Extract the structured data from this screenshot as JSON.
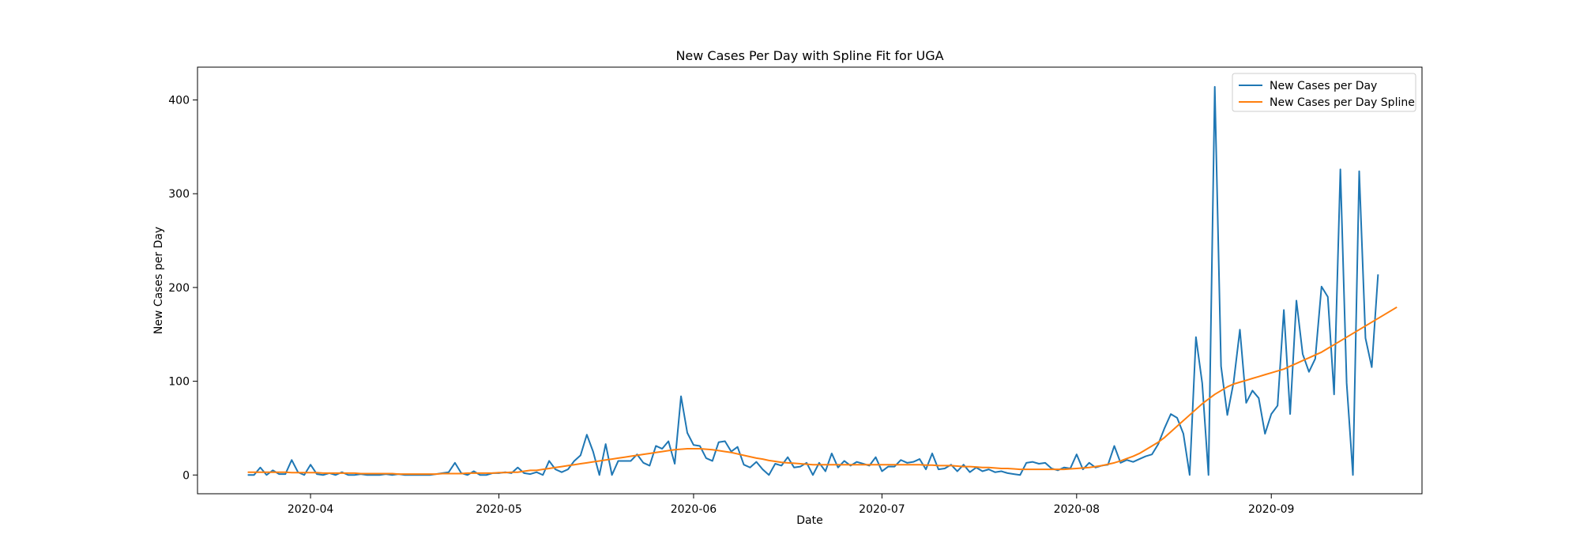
{
  "chart_data": {
    "type": "line",
    "title": "New Cases Per Day with Spline Fit for UGA",
    "xlabel": "Date",
    "ylabel": "New Cases per Day",
    "xlim": [
      "2020-03-14",
      "2020-09-25"
    ],
    "ylim": [
      -20,
      435
    ],
    "x_ticks": [
      "2020-04",
      "2020-05",
      "2020-06",
      "2020-07",
      "2020-08",
      "2020-09"
    ],
    "x_tick_dates": [
      "2020-04-01",
      "2020-05-01",
      "2020-06-01",
      "2020-07-01",
      "2020-08-01",
      "2020-09-01"
    ],
    "y_ticks": [
      0,
      100,
      200,
      300,
      400
    ],
    "grid": false,
    "legend_position": "top-right",
    "x_start": "2020-03-22",
    "x_step_days": 1,
    "series": [
      {
        "name": "New Cases per Day",
        "color": "#1f77b4",
        "values": [
          0,
          0,
          8,
          0,
          5,
          1,
          1,
          16,
          3,
          0,
          11,
          1,
          0,
          2,
          0,
          3,
          0,
          0,
          1,
          0,
          0,
          0,
          1,
          0,
          1,
          0,
          0,
          0,
          0,
          0,
          1,
          2,
          3,
          13,
          2,
          0,
          4,
          0,
          0,
          2,
          2,
          3,
          2,
          8,
          2,
          1,
          3,
          0,
          15,
          6,
          3,
          6,
          15,
          21,
          43,
          25,
          0,
          33,
          0,
          15,
          15,
          15,
          22,
          13,
          10,
          31,
          28,
          36,
          12,
          84,
          45,
          32,
          31,
          18,
          15,
          35,
          36,
          25,
          30,
          11,
          8,
          14,
          6,
          0,
          12,
          10,
          19,
          8,
          9,
          13,
          0,
          13,
          4,
          23,
          8,
          15,
          10,
          14,
          12,
          10,
          19,
          4,
          9,
          9,
          16,
          13,
          14,
          17,
          6,
          23,
          6,
          7,
          11,
          4,
          11,
          3,
          8,
          4,
          6,
          3,
          4,
          2,
          1,
          0,
          13,
          14,
          12,
          13,
          7,
          5,
          8,
          7,
          22,
          6,
          13,
          8,
          10,
          11,
          31,
          13,
          16,
          14,
          17,
          20,
          22,
          33,
          50,
          65,
          61,
          44,
          0,
          147,
          98,
          0,
          414,
          116,
          64,
          99,
          155,
          77,
          90,
          82,
          44,
          65,
          74,
          176,
          65,
          186,
          129,
          110,
          124,
          201,
          190,
          86,
          326,
          98,
          0,
          324,
          146,
          115,
          214
        ]
      },
      {
        "name": "New Cases per Day Spline",
        "color": "#ff7f0e",
        "values": [
          3,
          3,
          3,
          3,
          3,
          3,
          3,
          2.5,
          2.5,
          2.5,
          2.5,
          2.5,
          2,
          2,
          2,
          2,
          2,
          2,
          1.5,
          1.5,
          1.5,
          1.5,
          1.5,
          1.5,
          1,
          1,
          1,
          1,
          1,
          1,
          1,
          1.5,
          1.5,
          1.5,
          1.5,
          2,
          2,
          2,
          2,
          2,
          2.5,
          2.5,
          3,
          3,
          4,
          5,
          5,
          6,
          7,
          8,
          9,
          10,
          11,
          12,
          13,
          14,
          15,
          16,
          17,
          18,
          19,
          20,
          21,
          22,
          23,
          24,
          25,
          26,
          27,
          27.5,
          28,
          28,
          28,
          27.5,
          27,
          26,
          25,
          24,
          22.5,
          21,
          19.5,
          18,
          17,
          15.5,
          14.5,
          13.5,
          13,
          12.5,
          12,
          11.5,
          11,
          11,
          11,
          11,
          11,
          11,
          11,
          11,
          11,
          11,
          11,
          11,
          11,
          11,
          11,
          11,
          11,
          11,
          10.5,
          10.5,
          10,
          10,
          10,
          9.5,
          9,
          9,
          8.5,
          8,
          8,
          7.5,
          7,
          7,
          6.5,
          6,
          6,
          6,
          6,
          6,
          6,
          6,
          6,
          6.5,
          7,
          7.5,
          8,
          9,
          10,
          11.5,
          13,
          15,
          17.5,
          20,
          23,
          27,
          31,
          35,
          40,
          46,
          52,
          58,
          64,
          70,
          76,
          81,
          86,
          90,
          94,
          97,
          99,
          101,
          103,
          105,
          107,
          109,
          111,
          113,
          116,
          119,
          122,
          125,
          128,
          131,
          135,
          139,
          143,
          147,
          151,
          155,
          159,
          163,
          167,
          171,
          175,
          179
        ]
      }
    ]
  }
}
